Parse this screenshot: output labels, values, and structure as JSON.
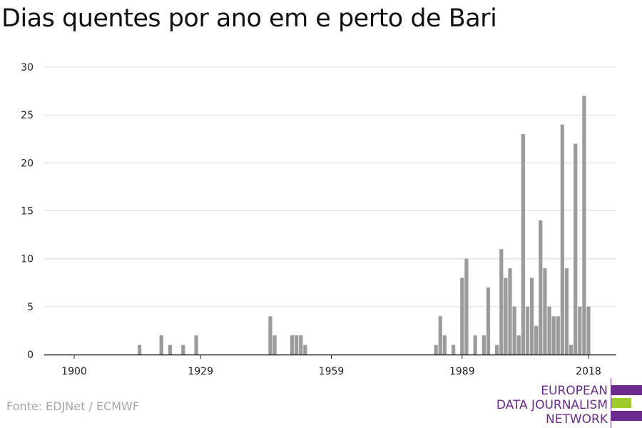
{
  "title": "Dias quentes por ano em e perto de Bari",
  "source": "Fonte: EDJNet / ECMWF",
  "logo": {
    "lines": [
      "EUROPEAN",
      "DATA JOURNALISM",
      "NETWORK"
    ],
    "colors": {
      "purple": "#6a2a8e",
      "green": "#9ccc2b"
    }
  },
  "chart_data": {
    "type": "bar",
    "title": "Dias quentes por ano em e perto de Bari",
    "xlabel": "",
    "ylabel": "",
    "xlim": [
      1900,
      2018
    ],
    "ylim": [
      0,
      30
    ],
    "x_ticks": [
      1900,
      1929,
      1959,
      1989,
      2018
    ],
    "y_ticks": [
      0,
      5,
      10,
      15,
      20,
      25,
      30
    ],
    "grid": true,
    "bar_color": "#9b9b9b",
    "x": [
      1915,
      1920,
      1922,
      1925,
      1928,
      1945,
      1946,
      1950,
      1951,
      1952,
      1953,
      1983,
      1984,
      1985,
      1987,
      1989,
      1990,
      1992,
      1994,
      1995,
      1997,
      1998,
      1999,
      2000,
      2001,
      2002,
      2003,
      2004,
      2005,
      2006,
      2007,
      2008,
      2009,
      2010,
      2011,
      2012,
      2013,
      2014,
      2015,
      2016,
      2017,
      2018
    ],
    "values": [
      1,
      2,
      1,
      1,
      2,
      4,
      2,
      2,
      2,
      2,
      1,
      1,
      4,
      2,
      1,
      8,
      10,
      2,
      2,
      7,
      1,
      11,
      8,
      9,
      5,
      2,
      23,
      5,
      8,
      3,
      14,
      9,
      5,
      4,
      4,
      24,
      9,
      1,
      22,
      5,
      27,
      5
    ]
  }
}
